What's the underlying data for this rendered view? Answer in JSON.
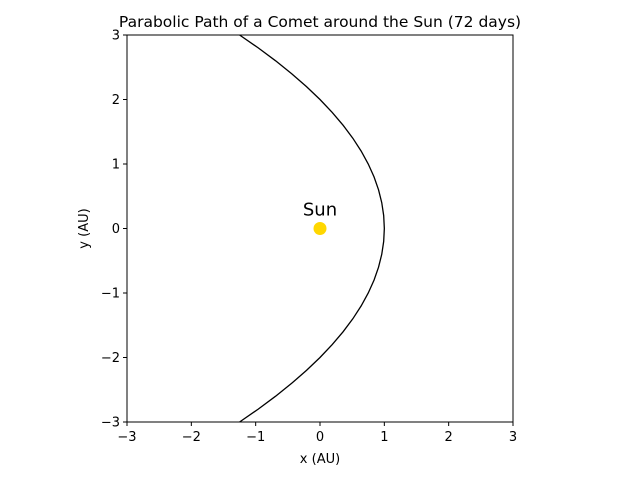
{
  "chart_data": {
    "type": "line",
    "title": "Parabolic Path of a Comet around the Sun (72 days)",
    "xlabel": "x (AU)",
    "ylabel": "y (AU)",
    "xlim": [
      -3,
      3
    ],
    "ylim": [
      -3,
      3
    ],
    "xticks": [
      -3,
      -2,
      -1,
      0,
      1,
      2,
      3
    ],
    "yticks": [
      -3,
      -2,
      -1,
      0,
      1,
      2,
      3
    ],
    "xtick_labels": [
      "−3",
      "−2",
      "−1",
      "0",
      "1",
      "2",
      "3"
    ],
    "ytick_labels": [
      "−3",
      "−2",
      "−1",
      "0",
      "1",
      "2",
      "3"
    ],
    "grid": false,
    "series": [
      {
        "x": [
          -1.25,
          -0.96,
          -0.69,
          -0.44,
          -0.21,
          0.0,
          0.19,
          0.36,
          0.51,
          0.64,
          0.75,
          0.84,
          0.91,
          0.96,
          0.99,
          1.0,
          0.99,
          0.96,
          0.91,
          0.84,
          0.75,
          0.64,
          0.51,
          0.36,
          0.19,
          0.0,
          -0.21,
          -0.44,
          -0.69,
          -0.96,
          -1.25
        ],
        "y": [
          3.0,
          2.8,
          2.6,
          2.4,
          2.2,
          2.0,
          1.8,
          1.6,
          1.4,
          1.2,
          1.0,
          0.8,
          0.6,
          0.4,
          0.2,
          0.0,
          -0.2,
          -0.4,
          -0.6,
          -0.8,
          -1.0,
          -1.2,
          -1.4,
          -1.6,
          -1.8,
          -2.0,
          -2.2,
          -2.4,
          -2.6,
          -2.8,
          -3.0
        ],
        "color": "#000000"
      }
    ],
    "points": [
      {
        "label": "Sun",
        "x": 0,
        "y": 0,
        "color": "#FFD700"
      }
    ]
  }
}
